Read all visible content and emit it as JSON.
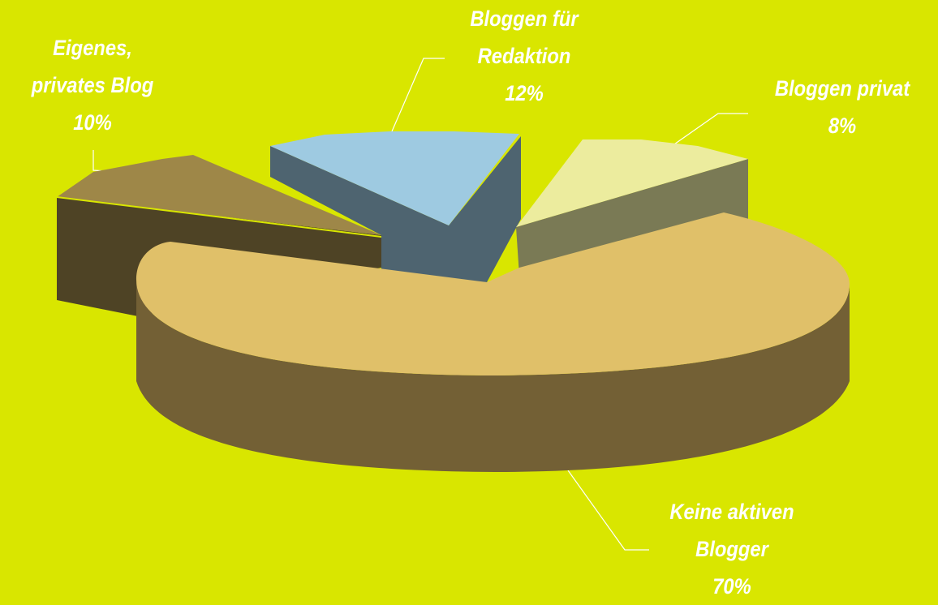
{
  "chart_data": {
    "type": "pie",
    "title": "",
    "slices": [
      {
        "label": [
          "Keine aktiven",
          "Blogger"
        ],
        "value_label": "70%",
        "value": 70,
        "color": "#e0c069"
      },
      {
        "label": [
          "Eigenes,",
          "privates Blog"
        ],
        "value_label": "10%",
        "value": 10,
        "color": "#9e8748"
      },
      {
        "label": [
          "Bloggen für",
          "Redaktion"
        ],
        "value_label": "12%",
        "value": 12,
        "color": "#9ecae1"
      },
      {
        "label": [
          "Bloggen privat"
        ],
        "value_label": "8%",
        "value": 8,
        "color": "#ecec9e"
      }
    ],
    "legend": "none",
    "background": "#d9e600"
  }
}
